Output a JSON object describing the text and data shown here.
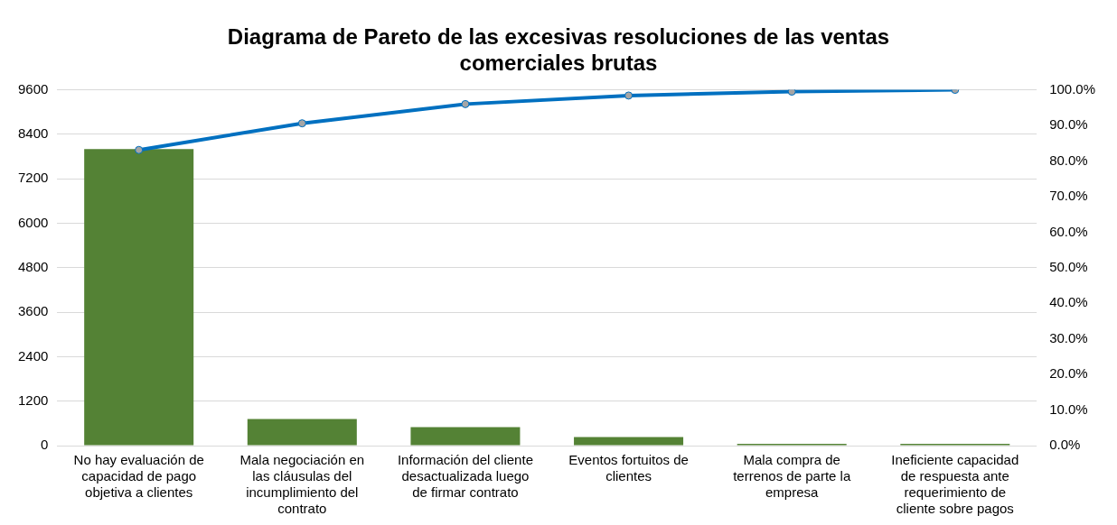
{
  "chart_data": {
    "type": "bar",
    "title": "Diagrama de Pareto de las excesivas resoluciones de las ventas comerciales brutas",
    "categories": [
      "No hay evaluación de capacidad de pago objetiva a clientes",
      "Mala negociación en las cláusulas del incumplimiento del contrato",
      "Información del cliente desactualizada luego de firmar contrato",
      "Eventos fortuitos de clientes",
      "Mala compra de terrenos de parte la empresa",
      "Ineficiente capacidad de respuesta ante requerimiento de cliente sobre pagos"
    ],
    "series": [
      {
        "color": "#548235",
        "values": [
          8000,
          720,
          500,
          230,
          50,
          50
        ]
      },
      {
        "type": "line",
        "axis": "y2",
        "color": "#0070c0",
        "values": [
          83.1,
          90.6,
          96.0,
          98.4,
          99.5,
          100.0
        ]
      }
    ],
    "ylim": [
      0,
      9600
    ],
    "yticks": [
      0,
      1200,
      2400,
      3600,
      4800,
      6000,
      7200,
      8400,
      9600
    ],
    "y2lim": [
      0,
      100
    ],
    "y2ticks": [
      {
        "value": 0,
        "label": "0.0%"
      },
      {
        "value": 10,
        "label": "10.0%"
      },
      {
        "value": 20,
        "label": "20.0%"
      },
      {
        "value": 30,
        "label": "30.0%"
      },
      {
        "value": 40,
        "label": "40.0%"
      },
      {
        "value": 50,
        "label": "50.0%"
      },
      {
        "value": 60,
        "label": "60.0%"
      },
      {
        "value": 70,
        "label": "70.0%"
      },
      {
        "value": 80,
        "label": "80.0%"
      },
      {
        "value": 90,
        "label": "90.0%"
      },
      {
        "value": 100,
        "label": "100.0%"
      }
    ],
    "grid": "y",
    "legend": false,
    "marker": "circle",
    "line_style": "solid"
  }
}
